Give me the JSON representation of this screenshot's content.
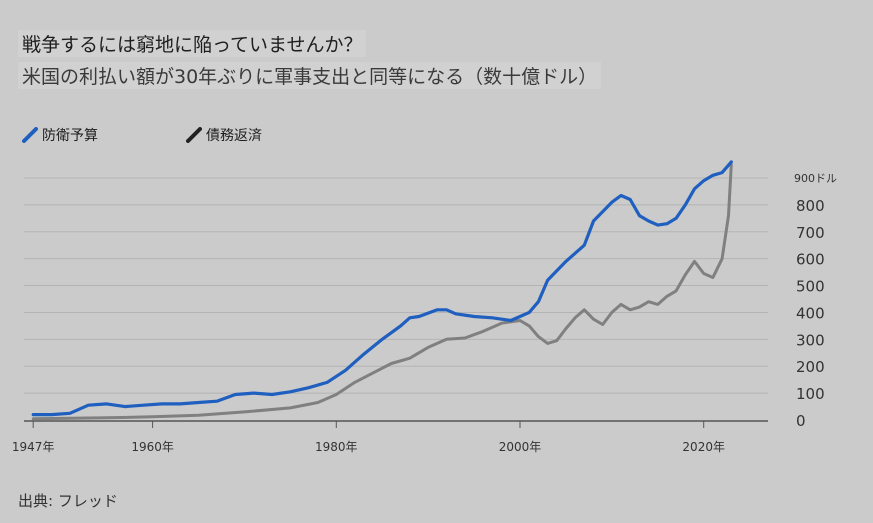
{
  "header": {
    "title": "戦争するには窮地に陥っていませんか？",
    "subtitle": "米国の利払い額が30年ぶりに軍事支出と同等になる（数十億ドル）"
  },
  "legend": [
    {
      "label": "防衛予算",
      "color": "#1f5fbf"
    },
    {
      "label": "債務返済",
      "color": "#222222"
    }
  ],
  "source": "出典: フレッド",
  "chart_data": {
    "type": "line",
    "title": "戦争するには窮地に陥っていませんか？",
    "subtitle": "米国の利払い額が30年ぶりに軍事支出と同等になる（数十億ドル）",
    "y_unit_label": "900ドル",
    "y_ticks": [
      "0",
      "100",
      "200",
      "300",
      "400",
      "500",
      "600",
      "700",
      "800"
    ],
    "x_ticks": [
      {
        "label": "1947年",
        "value": 1947
      },
      {
        "label": "1960年",
        "value": 1960
      },
      {
        "label": "1980年",
        "value": 1980
      },
      {
        "label": "2000年",
        "value": 2000
      },
      {
        "label": "2020年",
        "value": 2020
      }
    ],
    "xlim": [
      1946,
      2027
    ],
    "ylim": [
      0,
      900
    ],
    "grid": true,
    "legend_position": "top-left",
    "series": [
      {
        "name": "防衛予算",
        "color": "#1f5fbf",
        "points": [
          [
            1947,
            20
          ],
          [
            1949,
            20
          ],
          [
            1951,
            25
          ],
          [
            1953,
            55
          ],
          [
            1955,
            60
          ],
          [
            1957,
            50
          ],
          [
            1959,
            55
          ],
          [
            1961,
            60
          ],
          [
            1963,
            60
          ],
          [
            1965,
            65
          ],
          [
            1967,
            70
          ],
          [
            1969,
            95
          ],
          [
            1971,
            100
          ],
          [
            1973,
            95
          ],
          [
            1975,
            105
          ],
          [
            1977,
            120
          ],
          [
            1979,
            140
          ],
          [
            1981,
            185
          ],
          [
            1983,
            245
          ],
          [
            1985,
            300
          ],
          [
            1987,
            350
          ],
          [
            1988,
            380
          ],
          [
            1989,
            385
          ],
          [
            1991,
            410
          ],
          [
            1992,
            410
          ],
          [
            1993,
            395
          ],
          [
            1995,
            385
          ],
          [
            1997,
            380
          ],
          [
            1999,
            370
          ],
          [
            2000,
            385
          ],
          [
            2001,
            400
          ],
          [
            2002,
            440
          ],
          [
            2003,
            520
          ],
          [
            2005,
            590
          ],
          [
            2007,
            650
          ],
          [
            2008,
            740
          ],
          [
            2010,
            810
          ],
          [
            2011,
            835
          ],
          [
            2012,
            820
          ],
          [
            2013,
            760
          ],
          [
            2014,
            740
          ],
          [
            2015,
            725
          ],
          [
            2016,
            730
          ],
          [
            2017,
            750
          ],
          [
            2018,
            800
          ],
          [
            2019,
            860
          ],
          [
            2020,
            890
          ],
          [
            2021,
            910
          ],
          [
            2022,
            920
          ],
          [
            2023,
            960
          ]
        ]
      },
      {
        "name": "債務返済",
        "color": "#808080",
        "points": [
          [
            1947,
            5
          ],
          [
            1955,
            8
          ],
          [
            1960,
            12
          ],
          [
            1965,
            18
          ],
          [
            1970,
            30
          ],
          [
            1975,
            45
          ],
          [
            1978,
            65
          ],
          [
            1980,
            95
          ],
          [
            1982,
            140
          ],
          [
            1984,
            175
          ],
          [
            1986,
            210
          ],
          [
            1988,
            230
          ],
          [
            1990,
            270
          ],
          [
            1992,
            300
          ],
          [
            1994,
            305
          ],
          [
            1996,
            330
          ],
          [
            1998,
            360
          ],
          [
            2000,
            370
          ],
          [
            2001,
            350
          ],
          [
            2002,
            310
          ],
          [
            2003,
            285
          ],
          [
            2004,
            295
          ],
          [
            2005,
            340
          ],
          [
            2006,
            380
          ],
          [
            2007,
            410
          ],
          [
            2008,
            375
          ],
          [
            2009,
            355
          ],
          [
            2010,
            400
          ],
          [
            2011,
            430
          ],
          [
            2012,
            410
          ],
          [
            2013,
            420
          ],
          [
            2014,
            440
          ],
          [
            2015,
            430
          ],
          [
            2016,
            460
          ],
          [
            2017,
            480
          ],
          [
            2018,
            540
          ],
          [
            2019,
            590
          ],
          [
            2020,
            545
          ],
          [
            2021,
            530
          ],
          [
            2022,
            600
          ],
          [
            2022.7,
            760
          ],
          [
            2023,
            950
          ]
        ]
      }
    ]
  }
}
